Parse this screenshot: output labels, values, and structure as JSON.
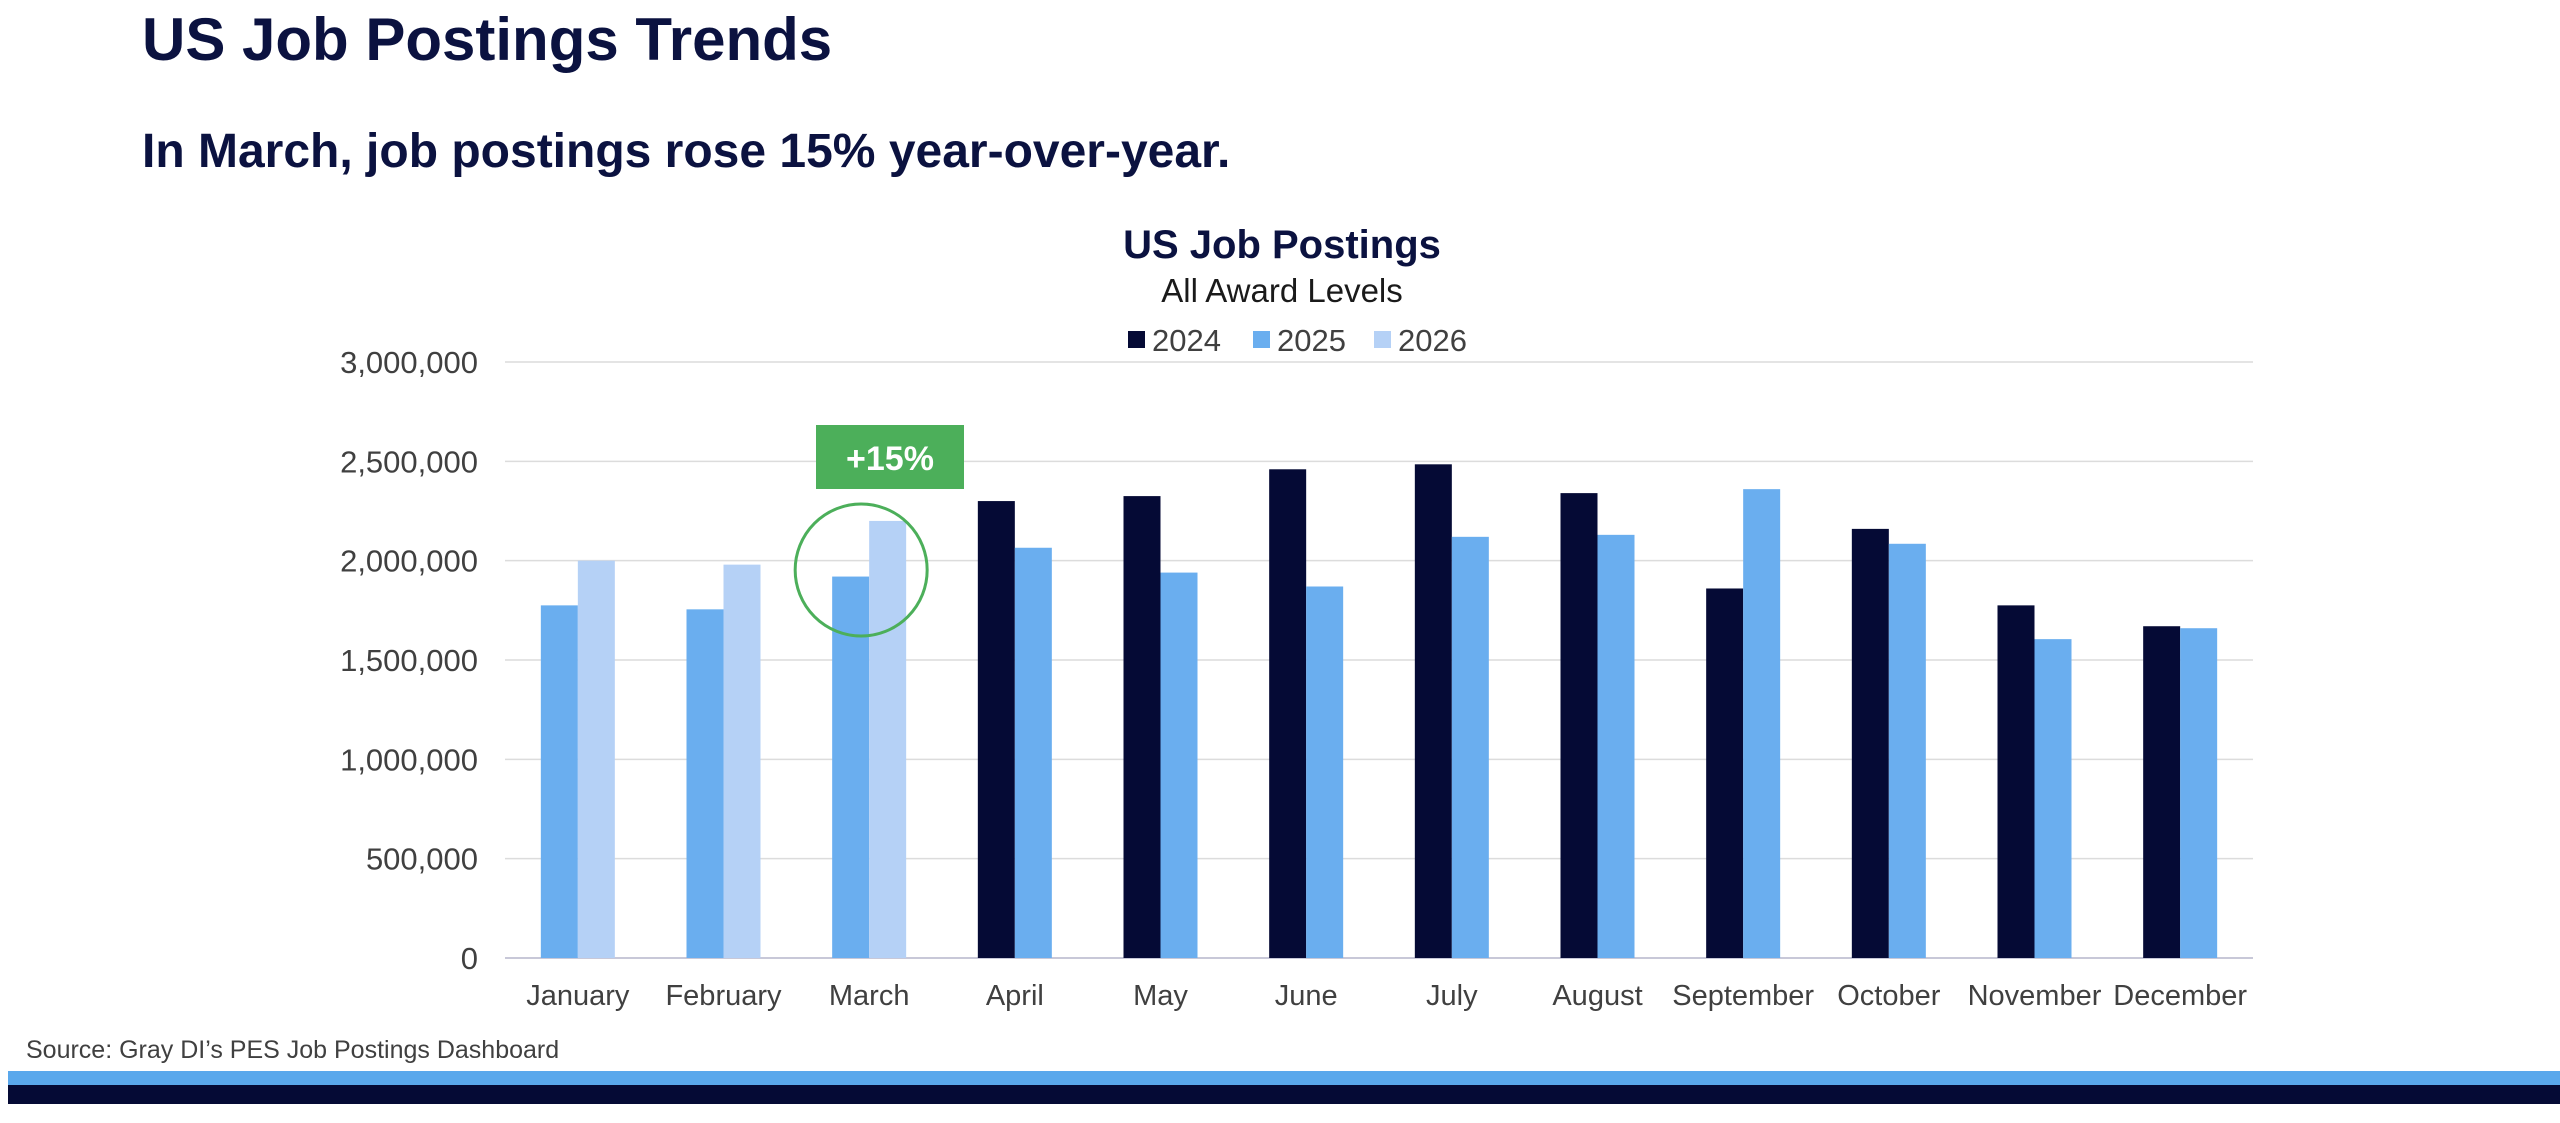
{
  "page": {
    "title": "US Job Postings Trends",
    "subtitle": "In March, job postings rose 15% year-over-year.",
    "source": "Source:  Gray DI’s PES Job Postings Dashboard"
  },
  "colors": {
    "title": "#0b1240",
    "series_2024": "#050a35",
    "series_2025": "#6aaeef",
    "series_2026": "#b5d1f6",
    "callout_box": "#4caf5a",
    "callout_circle": "#4caf5a",
    "footer_light": "#5aa8ec",
    "footer_dark": "#050a35"
  },
  "chart_data": {
    "type": "bar",
    "title": "US Job Postings",
    "subtitle": "All Award Levels",
    "categories": [
      "January",
      "February",
      "March",
      "April",
      "May",
      "June",
      "July",
      "August",
      "September",
      "October",
      "November",
      "December"
    ],
    "series": [
      {
        "name": "2024",
        "values": [
          null,
          null,
          null,
          2300000,
          2325000,
          2460000,
          2485000,
          2340000,
          1860000,
          2160000,
          1775000,
          1670000
        ]
      },
      {
        "name": "2025",
        "values": [
          1775000,
          1755000,
          1920000,
          2065000,
          1940000,
          1870000,
          2120000,
          2130000,
          2360000,
          2085000,
          1605000,
          1660000
        ]
      },
      {
        "name": "2026",
        "values": [
          2000000,
          1980000,
          2200000,
          null,
          null,
          null,
          null,
          null,
          null,
          null,
          null,
          null
        ]
      }
    ],
    "ylim": [
      0,
      3000000
    ],
    "yticks": [
      0,
      500000,
      1000000,
      1500000,
      2000000,
      2500000,
      3000000
    ],
    "ytick_labels": [
      "0",
      "500,000",
      "1,000,000",
      "1,500,000",
      "2,000,000",
      "2,500,000",
      "3,000,000"
    ],
    "grid": true,
    "legend": "top-center",
    "annotation": {
      "text": "+15%",
      "category": "March"
    }
  }
}
